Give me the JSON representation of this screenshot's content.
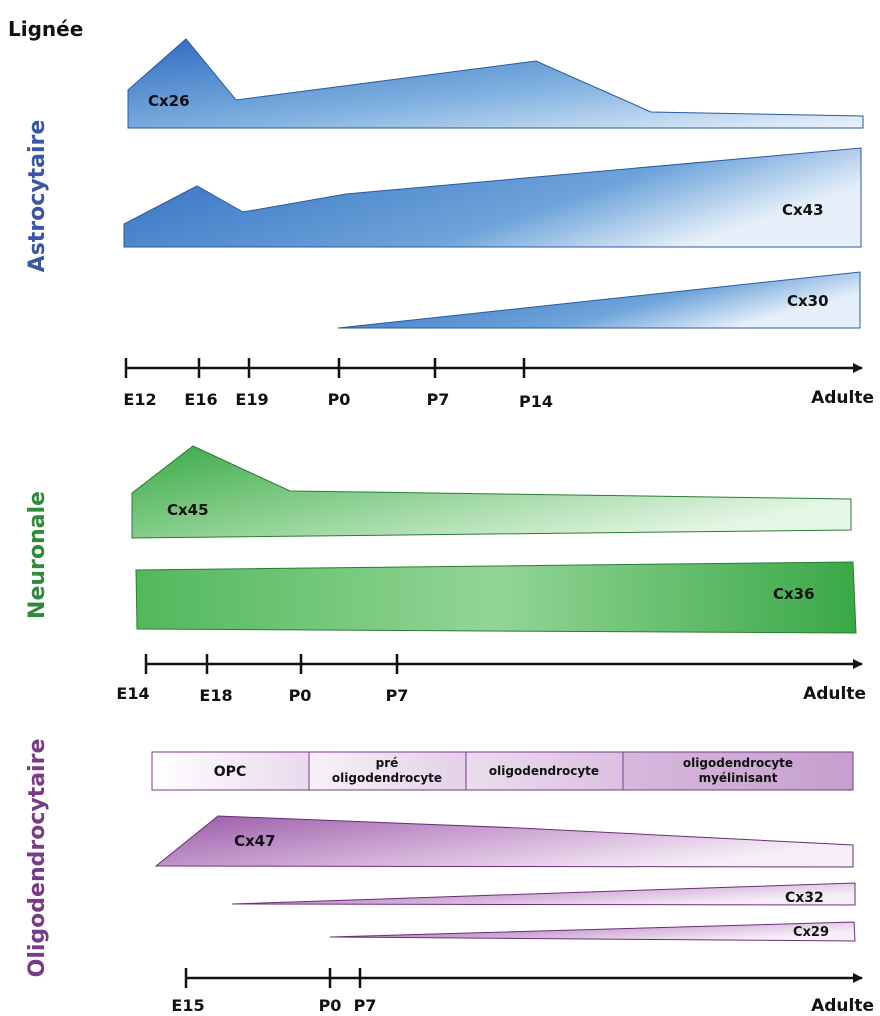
{
  "title": "Lignée",
  "colors": {
    "astro": "#3b56a6",
    "neuro": "#2f8a3c",
    "oligo": "#7a3b86",
    "axis": "#111111",
    "stage_border": "#7a3b86"
  },
  "astro": {
    "label": "Astrocytaire",
    "shapes": {
      "cx26": "Cx26",
      "cx43": "Cx43",
      "cx30": "Cx30"
    },
    "axis_ticks": [
      "E12",
      "E16",
      "E19",
      "P0",
      "P7",
      "P14"
    ],
    "axis_end": "Adulte"
  },
  "neuro": {
    "label": "Neuronale",
    "shapes": {
      "cx45": "Cx45",
      "cx36": "Cx36"
    },
    "axis_ticks": [
      "E14",
      "E18",
      "P0",
      "P7"
    ],
    "axis_end": "Adulte"
  },
  "oligo": {
    "label": "Oligodendrocytaire",
    "stages": {
      "opc": "OPC",
      "pre_line1": "pré",
      "pre_line2": "oligodendrocyte",
      "oligo": "oligodendrocyte",
      "myel_line1": "oligodendrocyte",
      "myel_line2": "myélinisant"
    },
    "shapes": {
      "cx47": "Cx47",
      "cx32": "Cx32",
      "cx29": "Cx29"
    },
    "axis_ticks": [
      "E15",
      "P0",
      "P7"
    ],
    "axis_end": "Adulte"
  }
}
